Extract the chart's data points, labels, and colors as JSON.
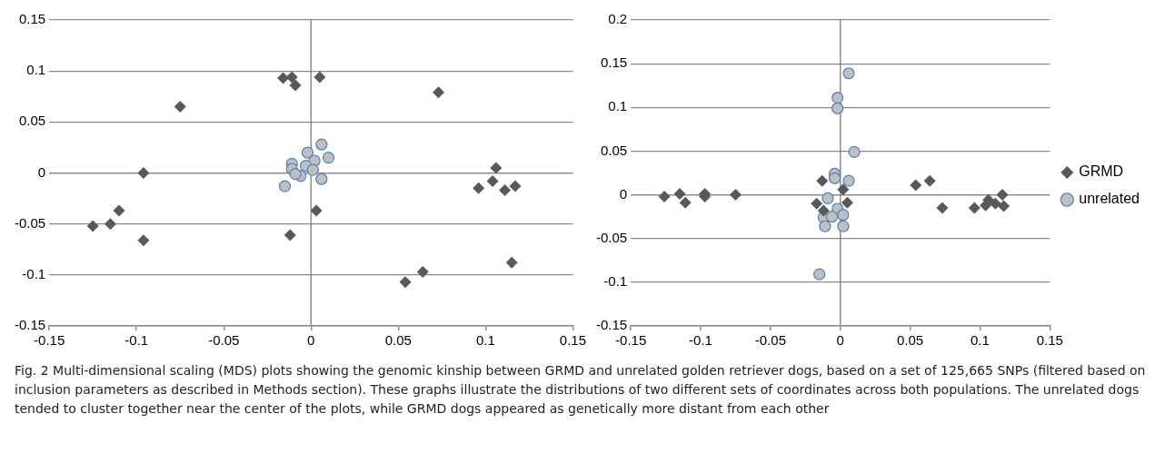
{
  "chart_data": [
    {
      "type": "scatter",
      "xlim": [
        -0.15,
        0.15
      ],
      "xticks": [
        -0.15,
        -0.1,
        -0.05,
        0,
        0.05,
        0.1,
        0.15
      ],
      "ylim": [
        -0.15,
        0.15
      ],
      "yticks": [
        -0.15,
        -0.1,
        -0.05,
        0,
        0.05,
        0.1,
        0.15
      ],
      "grid": "y",
      "legend": false,
      "ref_lines": [
        {
          "axis": "x",
          "value": 0,
          "color": "#8c8c8c"
        }
      ],
      "series": [
        {
          "color": "#595959",
          "marker": "diamond",
          "x": [
            -0.075,
            -0.096,
            -0.125,
            -0.115,
            -0.11,
            -0.096,
            -0.012,
            -0.016,
            -0.011,
            -0.009,
            0.005,
            0.073,
            0.003,
            0.054,
            0.064,
            0.115,
            0.106,
            0.104,
            0.096,
            0.111,
            0.117
          ],
          "values": [
            0.065,
            0,
            -0.052,
            -0.05,
            -0.037,
            -0.066,
            -0.061,
            0.093,
            0.094,
            0.086,
            0.094,
            0.079,
            -0.037,
            -0.107,
            -0.097,
            -0.088,
            0.005,
            -0.008,
            -0.015,
            -0.017,
            -0.013
          ]
        },
        {
          "color": "#bfbfbf",
          "marker": "circle",
          "x": [
            0.006,
            0.01,
            -0.002,
            0.002,
            -0.011,
            -0.003,
            -0.011,
            0.001,
            -0.006,
            0.006,
            -0.015,
            -0.009
          ],
          "values": [
            0.028,
            0.015,
            0.02,
            0.012,
            0.009,
            0.007,
            0.004,
            0.003,
            -0.003,
            -0.006,
            -0.013,
            -0.001
          ]
        }
      ],
      "annotations": [
        "Fig. 2 Multi-dimensional scaling (MDS) plots showing the genomic kinship between GRMD and unrelated golden retriever dogs, based on a set of 125,665 SNPs (filtered based on inclusion parameters as described in Methods section). These graphs illustrate the distributions of two different sets of coordinates across both populations. The unrelated dogs tended to cluster together near the center of the plots, while GRMD dogs appeared as genetically more distant from each other"
      ]
    },
    {
      "type": "scatter",
      "xlim": [
        -0.15,
        0.15
      ],
      "xticks": [
        -0.15,
        -0.1,
        -0.05,
        0,
        0.05,
        0.1,
        0.15
      ],
      "ylim": [
        -0.15,
        0.2
      ],
      "yticks": [
        -0.15,
        -0.1,
        -0.05,
        0,
        0.05,
        0.1,
        0.15,
        0.2
      ],
      "grid": "y",
      "legend": "right",
      "ref_lines": [
        {
          "axis": "x",
          "value": 0,
          "color": "#8c8c8c"
        }
      ],
      "series": [
        {
          "name": "GRMD",
          "color": "#595959",
          "marker": "diamond",
          "x": [
            -0.126,
            -0.115,
            -0.111,
            -0.097,
            -0.097,
            -0.075,
            -0.013,
            0.002,
            -0.017,
            0.005,
            -0.012,
            0.054,
            0.064,
            0.073,
            0.096,
            0.104,
            0.106,
            0.111,
            0.116,
            0.117
          ],
          "values": [
            -0.002,
            0.001,
            -0.009,
            0.001,
            -0.002,
            0,
            0.016,
            0.006,
            -0.01,
            -0.009,
            -0.018,
            0.011,
            0.016,
            -0.015,
            -0.015,
            -0.012,
            -0.006,
            -0.01,
            0,
            -0.013
          ]
        },
        {
          "name": "unrelated",
          "color": "#bfbfbf",
          "marker": "circle",
          "x": [
            0.006,
            -0.002,
            -0.002,
            0.01,
            -0.004,
            -0.004,
            0.006,
            -0.009,
            -0.002,
            0.002,
            -0.012,
            -0.006,
            -0.011,
            0.002,
            -0.015
          ],
          "values": [
            0.139,
            0.111,
            0.099,
            0.049,
            0.024,
            0.019,
            0.016,
            -0.004,
            -0.016,
            -0.023,
            -0.026,
            -0.025,
            -0.036,
            -0.036,
            -0.091
          ]
        }
      ]
    }
  ]
}
